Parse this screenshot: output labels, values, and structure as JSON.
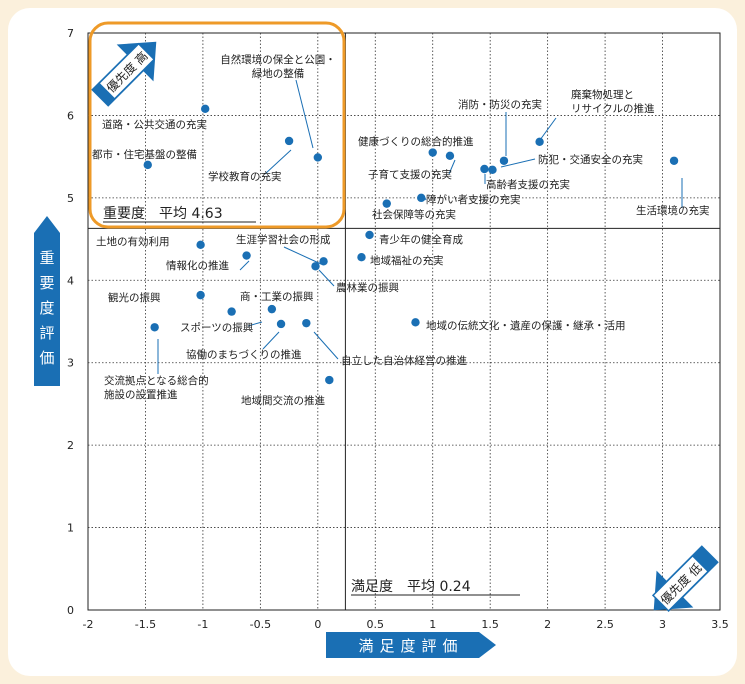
{
  "chart_data": {
    "type": "scatter",
    "xlabel": "満足度評価",
    "ylabel": "重要度評価",
    "xlim": [
      -2,
      3.5
    ],
    "ylim": [
      0,
      7
    ],
    "xticks": [
      "-2",
      "-1.5",
      "-1",
      "-0.5",
      "0",
      "0.5",
      "1",
      "1.5",
      "2",
      "2.5",
      "3",
      "3.5"
    ],
    "yticks": [
      "0",
      "1",
      "2",
      "3",
      "4",
      "5",
      "6",
      "7"
    ],
    "grid": true,
    "mean_x": 0.24,
    "mean_y": 4.63,
    "mean_x_label": "満足度　平均 0.24",
    "mean_y_label": "重要度　平均 4.63",
    "priority_high_label": "優先度 高",
    "priority_low_label": "優先度 低",
    "points": [
      {
        "label": "道路・公共交通の充実",
        "x": -0.98,
        "y": 6.08
      },
      {
        "label": "都市・住宅基盤の整備",
        "x": -1.48,
        "y": 5.4
      },
      {
        "label": "自然環境の保全と公園・\n緑地の整備",
        "x": 0.0,
        "y": 5.49
      },
      {
        "label": "学校教育の充実",
        "x": -0.25,
        "y": 5.69
      },
      {
        "label": "健康づくりの総合的推進",
        "x": 1.0,
        "y": 5.55
      },
      {
        "label": "消防・防災の充実",
        "x": 1.62,
        "y": 5.45
      },
      {
        "label": "廃棄物処理と\nリサイクルの推進",
        "x": 1.93,
        "y": 5.68
      },
      {
        "label": "子育て支援の充実",
        "x": 1.15,
        "y": 5.51
      },
      {
        "label": "防犯・交通安全の充実",
        "x": 1.45,
        "y": 5.35
      },
      {
        "label": "高齢者支援の充実",
        "x": 1.52,
        "y": 5.34
      },
      {
        "label": "障がい者支援の充実",
        "x": 0.9,
        "y": 5.0
      },
      {
        "label": "社会保障等の充実",
        "x": 0.6,
        "y": 4.93
      },
      {
        "label": "生活環境の充実",
        "x": 3.1,
        "y": 5.45
      },
      {
        "label": "土地の有効利用",
        "x": -1.02,
        "y": 4.43
      },
      {
        "label": "生涯学習社会の形成",
        "x": 0.05,
        "y": 4.23
      },
      {
        "label": "情報化の推進",
        "x": -0.62,
        "y": 4.3
      },
      {
        "label": "青少年の健全育成",
        "x": 0.45,
        "y": 4.55
      },
      {
        "label": "地域福祉の充実",
        "x": 0.38,
        "y": 4.28
      },
      {
        "label": "農林業の振興",
        "x": -0.02,
        "y": 4.17
      },
      {
        "label": "観光の振興",
        "x": -1.02,
        "y": 3.82
      },
      {
        "label": "商・工業の振興",
        "x": -0.4,
        "y": 3.65
      },
      {
        "label": "スポーツの振興",
        "x": -0.75,
        "y": 3.62
      },
      {
        "label": "協働のまちづくりの推進",
        "x": -0.32,
        "y": 3.47
      },
      {
        "label": "自立した自治体経営の推進",
        "x": -0.1,
        "y": 3.48
      },
      {
        "label": "地域の伝統文化・遺産の保護・継承・活用",
        "x": 0.85,
        "y": 3.49
      },
      {
        "label": "交流拠点となる総合的\n施設の設置推進",
        "x": -1.42,
        "y": 3.43
      },
      {
        "label": "地域間交流の推進",
        "x": 0.1,
        "y": 2.79
      }
    ]
  }
}
